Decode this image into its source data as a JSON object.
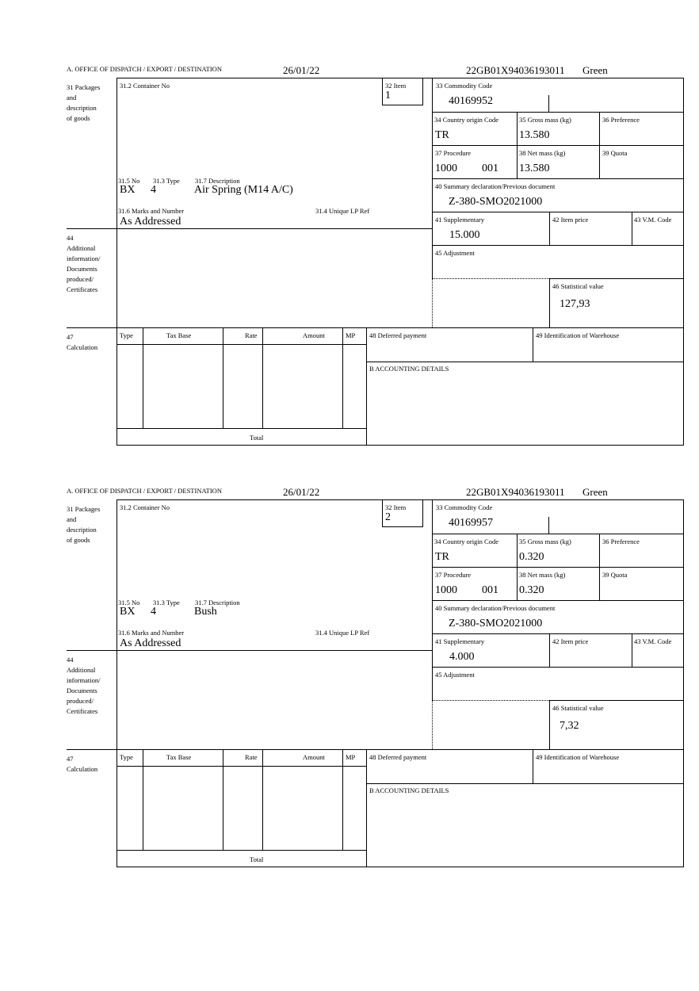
{
  "labels": {
    "office": "A. OFFICE OF DISPATCH / EXPORT / DESTINATION",
    "packages": "31 Packages\nand\ndescription\nof goods",
    "container_no": "31.2 Container No",
    "item": "32 Item",
    "commodity_code": "33 Commodity Code",
    "country_origin": "34 Country origin Code",
    "gross_mass": "35 Gross mass (kg)",
    "preference": "36 Preference",
    "procedure": "37 Procedure",
    "net_mass": "38 Net mass (kg)",
    "quota": "39 Quota",
    "summary_declaration": "40 Summary declaration/Previous document",
    "supplementary": "41 Supplementary",
    "item_price": "42 Item price",
    "vm_code": "43 V.M. Code",
    "adjustment": "45 Adjustment",
    "statistical_value": "46 Statistical value",
    "no": "31.5 No",
    "type": "31.3 Type",
    "description": "31.7 Description",
    "marks": "31.6 Marks and Number",
    "unique_lp": "31.4 Unique LP Ref",
    "additional_info": "44\nAdditional\ninformation/\nDocuments\nproduced/\nCertificates",
    "calculation": "47\nCalculation",
    "calc_type": "Type",
    "tax_base": "Tax Base",
    "rate": "Rate",
    "amount": "Amount",
    "mp": "MP",
    "total": "Total",
    "deferred_payment": "48 Deferred payment",
    "warehouse": "49 Identification of Warehouse",
    "accounting": "B ACCOUNTING DETAILS"
  },
  "forms": [
    {
      "date": "26/01/22",
      "reference": "22GB01X94036193011",
      "route": "Green",
      "item": "1",
      "commodity_code": "40169952",
      "country_origin": "TR",
      "gross_mass": "13.580",
      "procedure": "1000",
      "procedure_additional": "001",
      "net_mass": "13.580",
      "summary_declaration": "Z-380-SMO2021000",
      "supplementary": "15.000",
      "statistical_value": "127,93",
      "package_kind": "BX",
      "package_count": "4",
      "description": "Air Spring (M14 A/C)",
      "marks": "As Addressed"
    },
    {
      "date": "26/01/22",
      "reference": "22GB01X94036193011",
      "route": "Green",
      "item": "2",
      "commodity_code": "40169957",
      "country_origin": "TR",
      "gross_mass": "0.320",
      "procedure": "1000",
      "procedure_additional": "001",
      "net_mass": "0.320",
      "summary_declaration": "Z-380-SMO2021000",
      "supplementary": "4.000",
      "statistical_value": "7,32",
      "package_kind": "BX",
      "package_count": "4",
      "description": "Bush",
      "marks": "As Addressed"
    }
  ]
}
